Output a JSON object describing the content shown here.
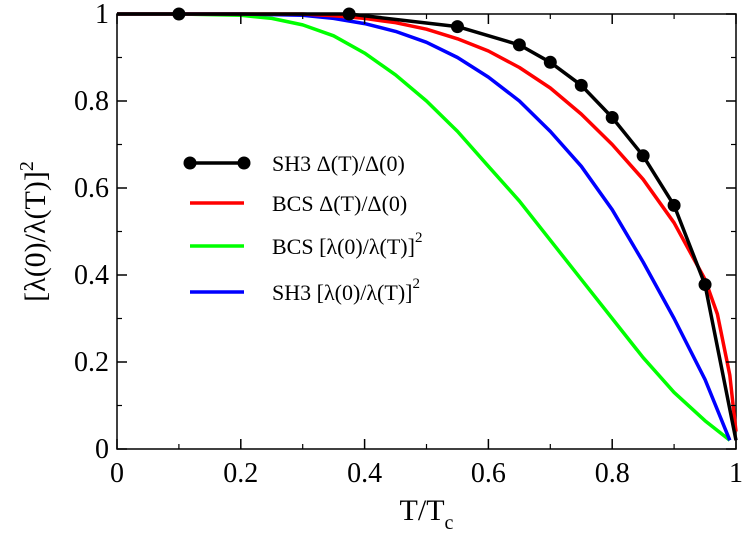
{
  "chart_data": {
    "type": "line",
    "title": "",
    "xlabel": "T/T",
    "xlabel_sub": "c",
    "ylabel": "[λ(0)/λ(T)]",
    "ylabel_sup": "2",
    "xlim": [
      0,
      1
    ],
    "ylim": [
      0,
      1
    ],
    "xticks": [
      "0",
      "0.2",
      "0.4",
      "0.6",
      "0.8",
      "1"
    ],
    "yticks": [
      "0",
      "0.2",
      "0.4",
      "0.6",
      "0.8",
      "1"
    ],
    "grid": false,
    "legend_position": "center-left",
    "series": [
      {
        "name": "SH3 Δ(T)/Δ(0)",
        "color": "#000000",
        "markers": true,
        "x": [
          0.0,
          0.1,
          0.375,
          0.55,
          0.65,
          0.7,
          0.75,
          0.8,
          0.85,
          0.9,
          0.95,
          1.0
        ],
        "y": [
          1.0,
          1.0,
          1.0,
          0.971,
          0.929,
          0.889,
          0.836,
          0.762,
          0.674,
          0.56,
          0.378,
          0.02
        ]
      },
      {
        "name": "BCS Δ(T)/Δ(0)",
        "color": "#ff0000",
        "markers": false,
        "x": [
          0,
          0.2,
          0.3,
          0.35,
          0.4,
          0.45,
          0.5,
          0.55,
          0.6,
          0.65,
          0.7,
          0.75,
          0.8,
          0.85,
          0.9,
          0.95,
          0.97,
          0.99,
          1.0
        ],
        "y": [
          1.0,
          1.0,
          1.0,
          0.996,
          0.99,
          0.98,
          0.965,
          0.943,
          0.915,
          0.877,
          0.83,
          0.77,
          0.7,
          0.62,
          0.52,
          0.39,
          0.31,
          0.17,
          0.04
        ]
      },
      {
        "name": "BCS [λ(0)/λ(T)]",
        "name_sup": "2",
        "color": "#00ff00",
        "markers": false,
        "x": [
          0,
          0.1,
          0.2,
          0.25,
          0.3,
          0.35,
          0.4,
          0.45,
          0.5,
          0.55,
          0.6,
          0.65,
          0.7,
          0.75,
          0.8,
          0.85,
          0.9,
          0.95,
          0.99
        ],
        "y": [
          1.0,
          1.0,
          0.997,
          0.99,
          0.975,
          0.95,
          0.91,
          0.86,
          0.8,
          0.73,
          0.65,
          0.57,
          0.48,
          0.39,
          0.3,
          0.21,
          0.13,
          0.065,
          0.02
        ]
      },
      {
        "name": "SH3 [λ(0)/λ(T)]",
        "name_sup": "2",
        "color": "#0000ff",
        "markers": false,
        "x": [
          0,
          0.2,
          0.3,
          0.35,
          0.4,
          0.45,
          0.5,
          0.55,
          0.6,
          0.65,
          0.7,
          0.75,
          0.8,
          0.85,
          0.9,
          0.95,
          0.99
        ],
        "y": [
          1.0,
          1.0,
          0.997,
          0.99,
          0.978,
          0.96,
          0.935,
          0.9,
          0.855,
          0.8,
          0.73,
          0.65,
          0.55,
          0.43,
          0.3,
          0.16,
          0.02
        ]
      }
    ]
  }
}
